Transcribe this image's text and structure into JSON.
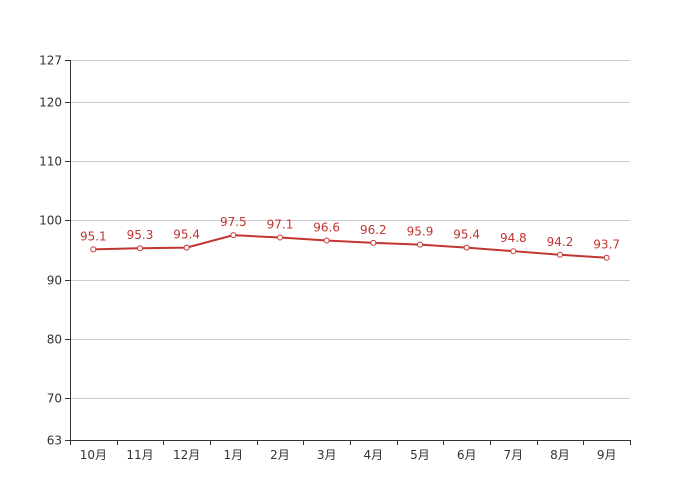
{
  "chart_data": {
    "type": "line",
    "categories": [
      "10月",
      "11月",
      "12月",
      "1月",
      "2月",
      "3月",
      "4月",
      "5月",
      "6月",
      "7月",
      "8月",
      "9月"
    ],
    "series": [
      {
        "values": [
          95.1,
          95.3,
          95.4,
          97.5,
          97.1,
          96.6,
          96.2,
          95.9,
          95.4,
          94.8,
          94.2,
          93.7
        ]
      }
    ],
    "ylim": [
      63,
      127
    ],
    "yticks": [
      63,
      70,
      80,
      90,
      100,
      110,
      120,
      127
    ],
    "data_labels": true,
    "grid": true,
    "legend": "none"
  },
  "colors": {
    "series": "#c23531",
    "point_fill": "#ffffff"
  }
}
